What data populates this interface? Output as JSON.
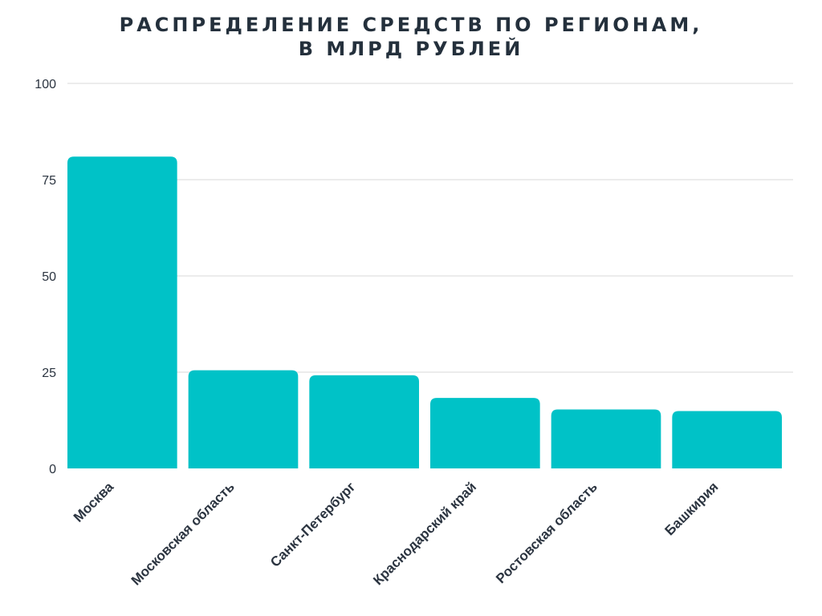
{
  "chart": {
    "title_line1": "РАСПРЕДЕЛЕНИЕ СРЕДСТВ ПО РЕГИОНАМ,",
    "title_line2": "В МЛРД РУБЛЕЙ"
  },
  "colors": {
    "bar": "#00c2c7",
    "grid": "#d9d9d9",
    "text": "#2b3440"
  },
  "chart_data": {
    "type": "bar",
    "title": "РАСПРЕДЕЛЕНИЕ СРЕДСТВ ПО РЕГИОНАМ, В МЛРД РУБЛЕЙ",
    "categories": [
      "Москва",
      "Московская область",
      "Санкт-Петербург",
      "Краснодарский край",
      "Ростовская область",
      "Башкирия"
    ],
    "values": [
      81,
      25.5,
      24.2,
      18.3,
      15.3,
      14.9
    ],
    "xlabel": "",
    "ylabel": "",
    "ylim": [
      0,
      100
    ],
    "yticks": [
      0,
      25,
      50,
      75,
      100
    ],
    "grid": true,
    "legend": "none"
  }
}
